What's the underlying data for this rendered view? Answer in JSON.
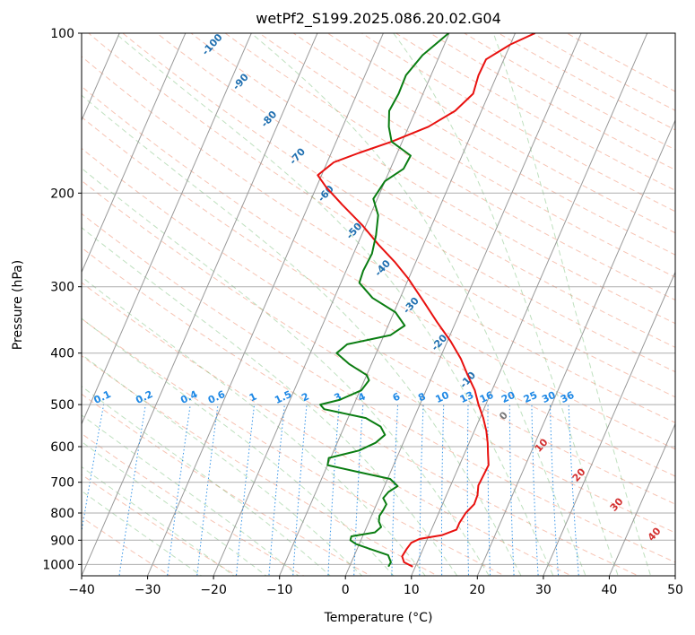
{
  "chart_data": {
    "type": "line",
    "title": "wetPf2_S199.2025.086.20.02.G04",
    "xlabel": "Temperature (°C)",
    "ylabel": "Pressure (hPa)",
    "xlim": [
      -40,
      50
    ],
    "ylim": [
      1050,
      100
    ],
    "y_scale": "log",
    "grid": true,
    "x_ticks": [
      -40,
      -30,
      -20,
      -10,
      0,
      10,
      20,
      30,
      40,
      50
    ],
    "x_tick_labels": [
      "−40",
      "−30",
      "−20",
      "−10",
      "0",
      "10",
      "20",
      "30",
      "40",
      "50"
    ],
    "y_ticks": [
      1000,
      900,
      800,
      700,
      600,
      500,
      400,
      300,
      200,
      100
    ],
    "y_tick_labels": [
      "1000",
      "900",
      "800",
      "700",
      "600",
      "500",
      "400",
      "300",
      "200",
      "100"
    ],
    "isotherm_labels": [
      {
        "t": -100,
        "text": "-100"
      },
      {
        "t": -90,
        "text": "-90"
      },
      {
        "t": -80,
        "text": "-80"
      },
      {
        "t": -70,
        "text": "-70"
      },
      {
        "t": -60,
        "text": "-60"
      },
      {
        "t": -50,
        "text": "-50"
      },
      {
        "t": -40,
        "text": "-40"
      },
      {
        "t": -30,
        "text": "-30"
      },
      {
        "t": -20,
        "text": "-20"
      },
      {
        "t": -10,
        "text": "-10"
      },
      {
        "t": 0,
        "text": "0"
      },
      {
        "t": 10,
        "text": "10"
      },
      {
        "t": 20,
        "text": "20"
      },
      {
        "t": 30,
        "text": "30"
      },
      {
        "t": 40,
        "text": "40"
      }
    ],
    "mixing_ratio_labels": [
      "0.1",
      "0.2",
      "0.4",
      "0.6",
      "1",
      "1.5",
      "2",
      "3",
      "4",
      "6",
      "8",
      "10",
      "13",
      "16",
      "20",
      "25",
      "30",
      "36"
    ],
    "series": [
      {
        "color": "#e8110f",
        "points": [
          [
            1009,
            9.6
          ],
          [
            990,
            8.0
          ],
          [
            965,
            7.3
          ],
          [
            935,
            7.5
          ],
          [
            910,
            7.8
          ],
          [
            895,
            8.8
          ],
          [
            880,
            12.0
          ],
          [
            860,
            13.8
          ],
          [
            835,
            13.8
          ],
          [
            800,
            14.1
          ],
          [
            770,
            14.8
          ],
          [
            740,
            14.7
          ],
          [
            710,
            14.2
          ],
          [
            680,
            14.3
          ],
          [
            650,
            14.4
          ],
          [
            620,
            13.6
          ],
          [
            590,
            12.8
          ],
          [
            560,
            11.8
          ],
          [
            530,
            10.5
          ],
          [
            500,
            8.9
          ],
          [
            470,
            7.4
          ],
          [
            440,
            5.3
          ],
          [
            410,
            3.2
          ],
          [
            380,
            0.5
          ],
          [
            350,
            -2.8
          ],
          [
            320,
            -6.2
          ],
          [
            290,
            -10.0
          ],
          [
            270,
            -13.1
          ],
          [
            250,
            -16.8
          ],
          [
            230,
            -20.5
          ],
          [
            210,
            -25.0
          ],
          [
            195,
            -28.5
          ],
          [
            185,
            -30.6
          ],
          [
            175,
            -29.0
          ],
          [
            168,
            -25.8
          ],
          [
            160,
            -21.6
          ],
          [
            150,
            -17.0
          ],
          [
            140,
            -14.0
          ],
          [
            130,
            -12.4
          ],
          [
            120,
            -12.8
          ],
          [
            112,
            -12.7
          ],
          [
            105,
            -10.0
          ],
          [
            100,
            -7.0
          ]
        ]
      },
      {
        "color": "#0a7d12",
        "points": [
          [
            1009,
            5.9
          ],
          [
            990,
            6.0
          ],
          [
            960,
            5.1
          ],
          [
            935,
            2.0
          ],
          [
            915,
            -0.5
          ],
          [
            900,
            -1.6
          ],
          [
            885,
            -1.7
          ],
          [
            870,
            1.6
          ],
          [
            850,
            2.2
          ],
          [
            830,
            1.5
          ],
          [
            810,
            1.2
          ],
          [
            790,
            1.4
          ],
          [
            770,
            1.5
          ],
          [
            750,
            0.6
          ],
          [
            730,
            1.0
          ],
          [
            712,
            2.0
          ],
          [
            690,
            0.4
          ],
          [
            670,
            -4.8
          ],
          [
            650,
            -10.0
          ],
          [
            630,
            -10.3
          ],
          [
            610,
            -6.2
          ],
          [
            590,
            -4.2
          ],
          [
            570,
            -3.3
          ],
          [
            550,
            -4.5
          ],
          [
            530,
            -7.3
          ],
          [
            510,
            -14.2
          ],
          [
            500,
            -15.1
          ],
          [
            490,
            -12.5
          ],
          [
            470,
            -9.8
          ],
          [
            450,
            -9.3
          ],
          [
            440,
            -10.0
          ],
          [
            420,
            -13.3
          ],
          [
            400,
            -16.0
          ],
          [
            385,
            -15.0
          ],
          [
            370,
            -9.0
          ],
          [
            355,
            -7.5
          ],
          [
            335,
            -9.8
          ],
          [
            315,
            -14.2
          ],
          [
            295,
            -17.2
          ],
          [
            280,
            -17.4
          ],
          [
            260,
            -17.2
          ],
          [
            240,
            -17.8
          ],
          [
            220,
            -18.8
          ],
          [
            205,
            -20.6
          ],
          [
            190,
            -20.0
          ],
          [
            180,
            -18.0
          ],
          [
            170,
            -17.8
          ],
          [
            160,
            -21.6
          ],
          [
            150,
            -23.0
          ],
          [
            140,
            -24.0
          ],
          [
            130,
            -23.7
          ],
          [
            120,
            -23.8
          ],
          [
            110,
            -22.6
          ],
          [
            100,
            -20.1
          ]
        ]
      }
    ]
  }
}
